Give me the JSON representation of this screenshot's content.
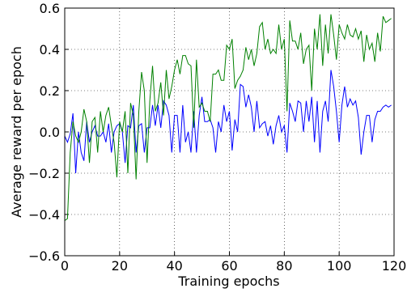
{
  "chart_data": {
    "type": "line",
    "x_label": "Training epochs",
    "y_label": "Average reward per epoch",
    "x": [
      0,
      1,
      2,
      3,
      4,
      5,
      6,
      7,
      8,
      9,
      10,
      11,
      12,
      13,
      14,
      15,
      16,
      17,
      18,
      19,
      20,
      21,
      22,
      23,
      24,
      25,
      26,
      27,
      28,
      29,
      30,
      31,
      32,
      33,
      34,
      35,
      36,
      37,
      38,
      39,
      40,
      41,
      42,
      43,
      44,
      45,
      46,
      47,
      48,
      49,
      50,
      51,
      52,
      53,
      54,
      55,
      56,
      57,
      58,
      59,
      60,
      61,
      62,
      63,
      64,
      65,
      66,
      67,
      68,
      69,
      70,
      71,
      72,
      73,
      74,
      75,
      76,
      77,
      78,
      79,
      80,
      81,
      82,
      83,
      84,
      85,
      86,
      87,
      88,
      89,
      90,
      91,
      92,
      93,
      94,
      95,
      96,
      97,
      98,
      99,
      100,
      101,
      102,
      103,
      104,
      105,
      106,
      107,
      108,
      109,
      110,
      111,
      112,
      113,
      114,
      115,
      116,
      117,
      118,
      119
    ],
    "series": [
      {
        "color": "#0000ff",
        "values": [
          -0.02,
          -0.05,
          -0.01,
          0.09,
          -0.2,
          0.0,
          -0.1,
          -0.14,
          0.05,
          -0.05,
          0.0,
          0.03,
          -0.02,
          -0.02,
          0.0,
          -0.05,
          0.04,
          -0.1,
          0.0,
          0.03,
          0.04,
          0.0,
          -0.15,
          0.03,
          0.02,
          0.13,
          -0.1,
          0.03,
          0.04,
          -0.1,
          0.02,
          0.02,
          0.13,
          0.03,
          0.13,
          0.02,
          0.15,
          0.13,
          0.08,
          -0.1,
          0.08,
          0.08,
          -0.1,
          0.13,
          -0.05,
          0.0,
          -0.1,
          0.1,
          -0.1,
          0.08,
          0.17,
          0.05,
          0.05,
          0.06,
          0.02,
          -0.1,
          0.05,
          0.0,
          0.13,
          0.05,
          0.1,
          -0.09,
          0.06,
          0.0,
          0.23,
          0.22,
          0.12,
          0.18,
          0.12,
          0.0,
          0.15,
          0.02,
          0.04,
          0.05,
          -0.02,
          0.03,
          -0.06,
          0.03,
          0.08,
          0.0,
          0.03,
          -0.1,
          0.14,
          0.1,
          0.05,
          0.15,
          0.14,
          0.0,
          0.15,
          0.05,
          0.17,
          -0.05,
          0.15,
          -0.1,
          0.1,
          0.15,
          0.05,
          0.3,
          0.22,
          0.1,
          -0.05,
          0.13,
          0.22,
          0.12,
          0.16,
          0.13,
          0.15,
          0.07,
          -0.11,
          0.0,
          0.08,
          0.08,
          -0.05,
          0.06,
          0.1,
          0.1,
          0.12,
          0.13,
          0.12,
          0.13
        ]
      },
      {
        "color": "#008000",
        "values": [
          -0.43,
          -0.42,
          -0.1,
          0.05,
          -0.02,
          -0.05,
          0.0,
          0.11,
          0.05,
          -0.15,
          0.05,
          0.07,
          -0.1,
          0.1,
          0.0,
          0.08,
          0.12,
          0.03,
          -0.05,
          -0.22,
          0.05,
          0.0,
          0.1,
          -0.2,
          0.14,
          0.08,
          -0.23,
          0.1,
          0.29,
          0.2,
          -0.15,
          0.15,
          0.32,
          0.1,
          0.14,
          0.24,
          0.08,
          0.3,
          0.16,
          0.22,
          0.3,
          0.35,
          0.28,
          0.37,
          0.37,
          0.33,
          0.32,
          0.02,
          0.35,
          0.12,
          0.14,
          0.1,
          0.1,
          0.05,
          0.28,
          0.28,
          0.3,
          0.25,
          0.25,
          0.42,
          0.4,
          0.45,
          0.21,
          0.25,
          0.27,
          0.3,
          0.41,
          0.35,
          0.4,
          0.32,
          0.38,
          0.51,
          0.53,
          0.4,
          0.45,
          0.38,
          0.4,
          0.38,
          0.52,
          0.4,
          0.45,
          0.1,
          0.54,
          0.44,
          0.44,
          0.4,
          0.48,
          0.33,
          0.4,
          0.42,
          0.2,
          0.5,
          0.4,
          0.57,
          0.32,
          0.52,
          0.38,
          0.57,
          0.47,
          0.35,
          0.52,
          0.48,
          0.45,
          0.52,
          0.47,
          0.46,
          0.5,
          0.45,
          0.49,
          0.34,
          0.47,
          0.4,
          0.43,
          0.34,
          0.48,
          0.39,
          0.56,
          0.53,
          0.54,
          0.55
        ]
      }
    ],
    "xlim": [
      0,
      120
    ],
    "ylim": [
      -0.6,
      0.6
    ],
    "xticks": [
      0,
      20,
      40,
      60,
      80,
      100,
      120
    ],
    "yticks": [
      {
        "value": -0.6,
        "label": "−0.6"
      },
      {
        "value": -0.4,
        "label": "−0.4"
      },
      {
        "value": -0.2,
        "label": "−0.2"
      },
      {
        "value": 0,
        "label": "0.0"
      },
      {
        "value": 0.2,
        "label": "0.2"
      },
      {
        "value": 0.4,
        "label": "0.4"
      },
      {
        "value": 0.6,
        "label": "0.6"
      }
    ],
    "grid": true
  }
}
